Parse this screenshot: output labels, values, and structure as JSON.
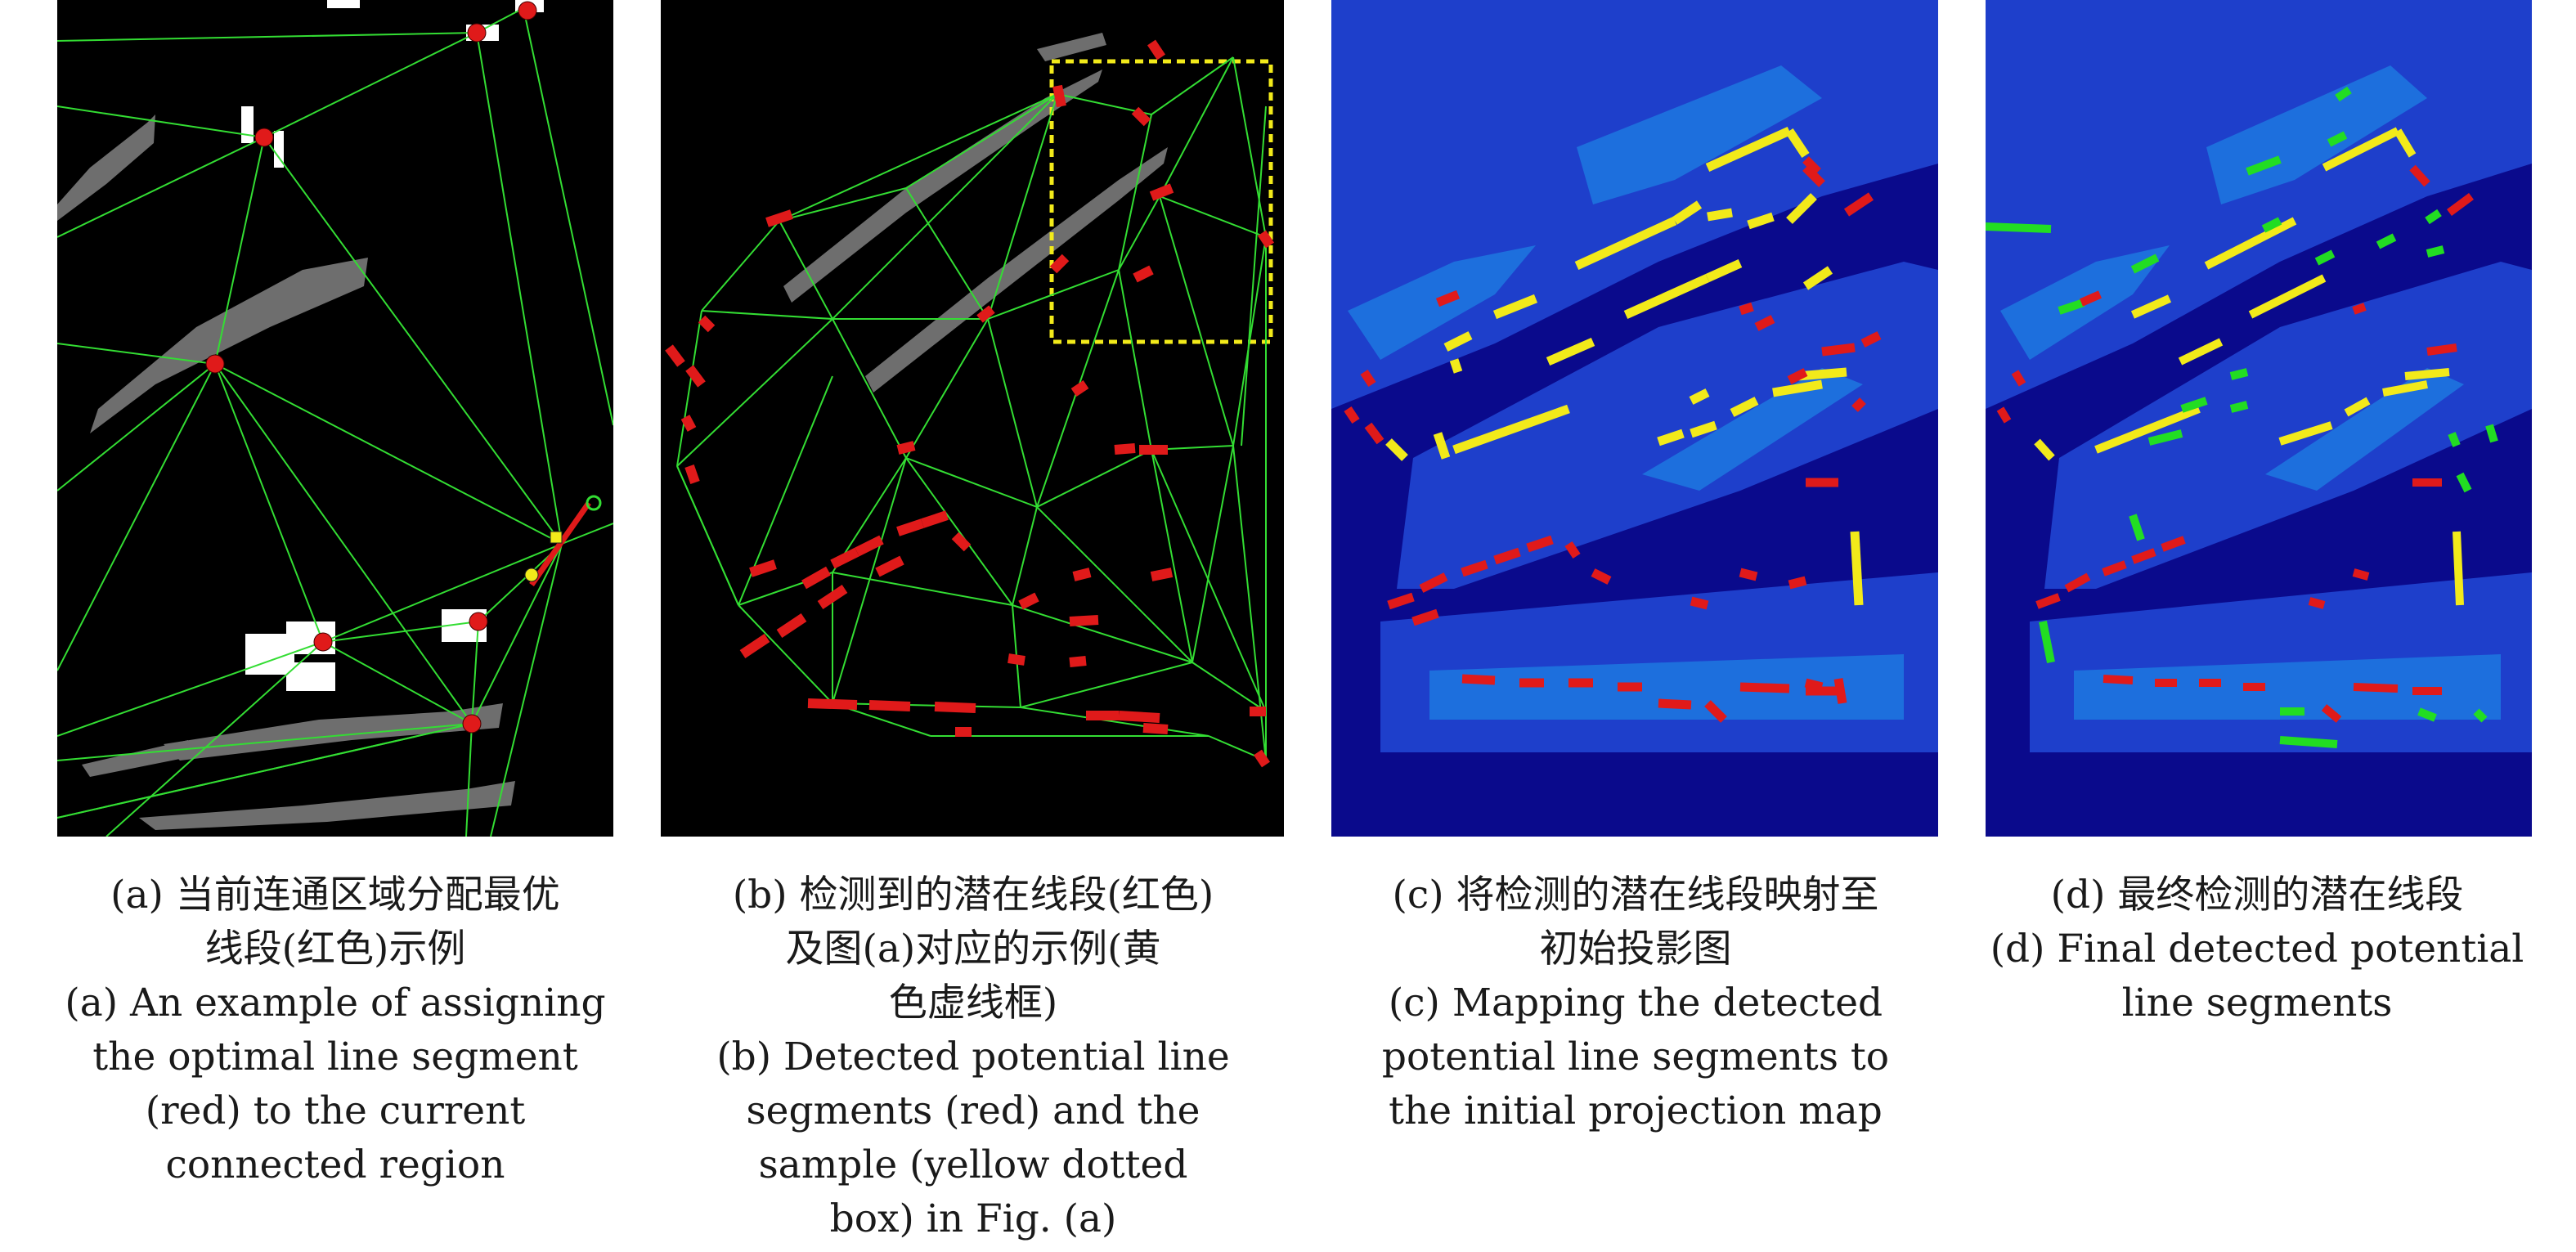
{
  "panels": [
    {
      "id": "a",
      "caption_zh": [
        "(a) 当前连通区域分配最优",
        "线段(红色)示例"
      ],
      "caption_en": [
        "(a) An example of assigning",
        "the optimal line segment",
        "(red) to the current",
        "connected region"
      ]
    },
    {
      "id": "b",
      "caption_zh": [
        "(b) 检测到的潜在线段(红色)",
        "及图(a)对应的示例(黄",
        "色虚线框)"
      ],
      "caption_en": [
        "(b) Detected potential line",
        "segments (red) and the",
        "sample (yellow dotted",
        "box) in Fig. (a)"
      ]
    },
    {
      "id": "c",
      "caption_zh": [
        "(c) 将检测的潜在线段映射至",
        "初始投影图"
      ],
      "caption_en": [
        "(c) Mapping the detected",
        "potential line segments to",
        "the initial projection map"
      ]
    },
    {
      "id": "d",
      "caption_zh": [
        "(d) 最终检测的潜在线段"
      ],
      "caption_en": [
        "(d) Final detected potential",
        "line segments"
      ]
    }
  ],
  "colors": {
    "background_dark": "#000000",
    "background_map": "#0a0a8c",
    "triangulation": "#33dd33",
    "segment_red": "#e01a1a",
    "segment_yellow": "#f2ea1a",
    "segment_green": "#22dd22",
    "region_gray": "#6e6e6e",
    "region_white": "#ffffff"
  }
}
